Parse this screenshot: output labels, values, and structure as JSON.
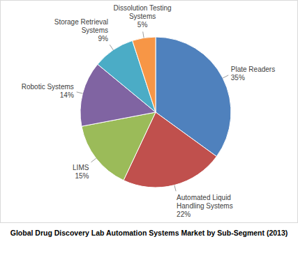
{
  "chart_data": {
    "type": "pie",
    "title": "Global Drug Discovery Lab Automation Systems Market by Sub-Segment (2013)",
    "categories": [
      "Plate Readers",
      "Automated Liquid Handling Systems",
      "LIMS",
      "Robotic Systems",
      "Storage Retrieval Systems",
      "Dissolution Testing Systems"
    ],
    "values": [
      35,
      22,
      15,
      14,
      9,
      5
    ],
    "value_labels": [
      "35%",
      "22%",
      "15%",
      "14%",
      "9%",
      "5%"
    ],
    "colors": [
      "#4f81bd",
      "#c0504d",
      "#9bbb59",
      "#8064a2",
      "#4bacc6",
      "#f79646"
    ],
    "data_labels": true
  }
}
